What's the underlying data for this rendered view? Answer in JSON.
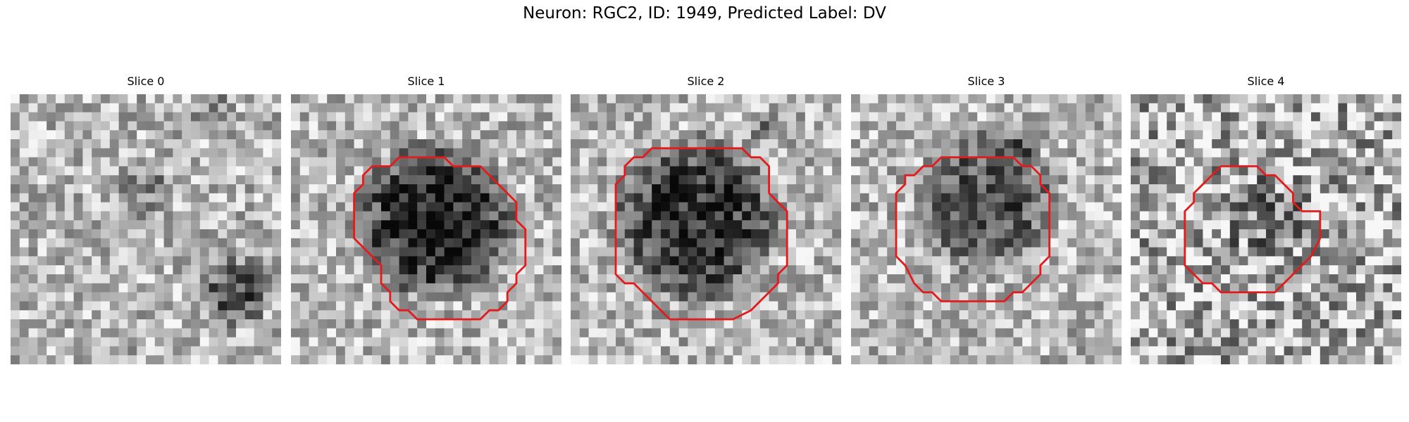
{
  "figure": {
    "title": "Neuron: RGC2, ID: 1949, Predicted Label: DV"
  },
  "panels": [
    {
      "title": "Slice 0",
      "contour": false,
      "blob_strength": 0.0
    },
    {
      "title": "Slice 1",
      "contour": true,
      "blob_strength": 0.95
    },
    {
      "title": "Slice 2",
      "contour": true,
      "blob_strength": 0.85
    },
    {
      "title": "Slice 3",
      "contour": true,
      "blob_strength": 0.65
    },
    {
      "title": "Slice 4",
      "contour": true,
      "blob_strength": 0.25
    }
  ],
  "colors": {
    "contour": "#e41a1c"
  }
}
